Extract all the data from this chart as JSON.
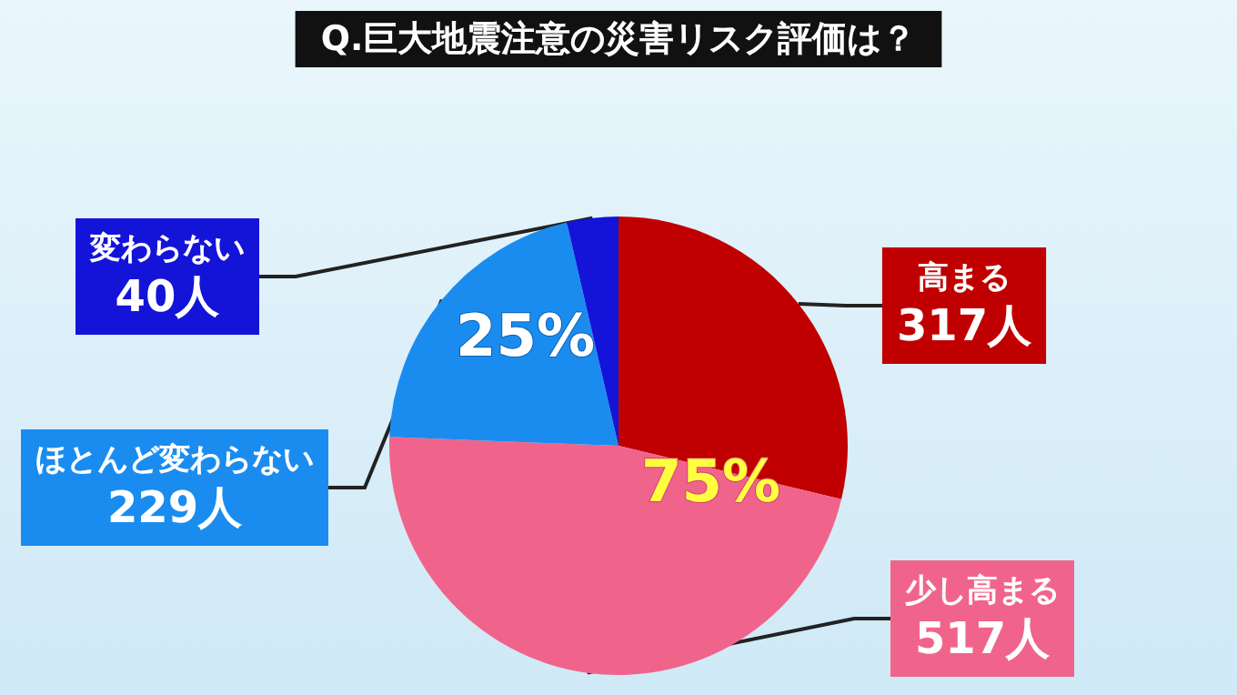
{
  "chart_data": {
    "type": "pie",
    "title": "Q.巨大地震注意の災害リスク評価は？",
    "categories": [
      "高まる",
      "少し高まる",
      "ほとんど変わらない",
      "変わらない"
    ],
    "values": [
      317,
      517,
      229,
      40
    ],
    "value_labels": [
      "317人",
      "517人",
      "229人",
      "40人"
    ],
    "colors": [
      "#c00000",
      "#f0648c",
      "#1a8cf0",
      "#1414d8"
    ],
    "annotations": [
      "75%",
      "25%"
    ],
    "legend": false
  }
}
